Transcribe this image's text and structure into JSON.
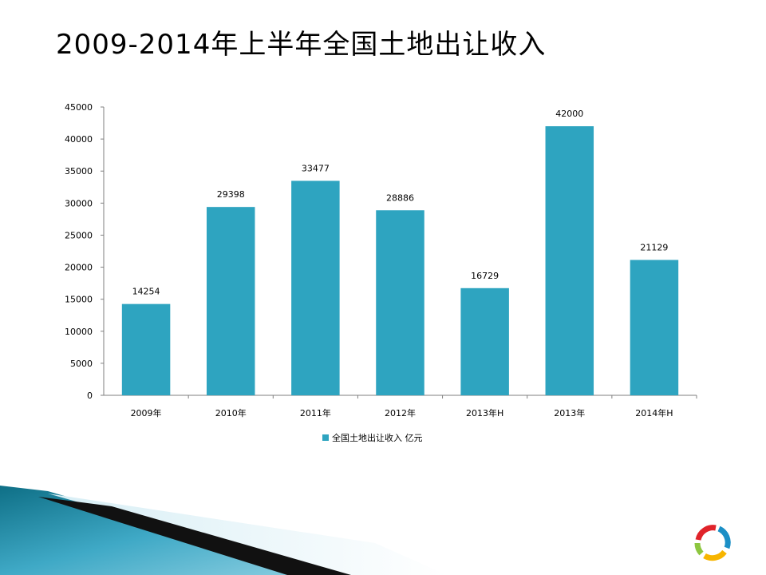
{
  "slide": {
    "title": "2009-2014年上半年全国土地出让收入"
  },
  "colors": {
    "bar": "#2ea4c0",
    "axis": "#7f7f7f",
    "logo_red": "#e0232a",
    "logo_green": "#8dc63f",
    "logo_blue": "#1b8fc6",
    "logo_yellow": "#f7b500"
  },
  "chart_data": {
    "type": "bar",
    "categories": [
      "2009年",
      "2010年",
      "2011年",
      "2012年",
      "2013年H",
      "2013年",
      "2014年H"
    ],
    "series": [
      {
        "name": "全国土地出让收入 亿元",
        "values": [
          14254,
          29398,
          33477,
          28886,
          16729,
          42000,
          21129
        ]
      }
    ],
    "y_ticks": [
      "0",
      "5000",
      "10000",
      "15000",
      "20000",
      "25000",
      "30000",
      "35000",
      "40000",
      "45000"
    ],
    "ylim": [
      0,
      45000
    ],
    "data_labels": [
      "14254",
      "29398",
      "33477",
      "28886",
      "16729",
      "42000",
      "21129"
    ],
    "legend_position": "bottom",
    "grid": false,
    "title": "",
    "xlabel": "",
    "ylabel": ""
  }
}
